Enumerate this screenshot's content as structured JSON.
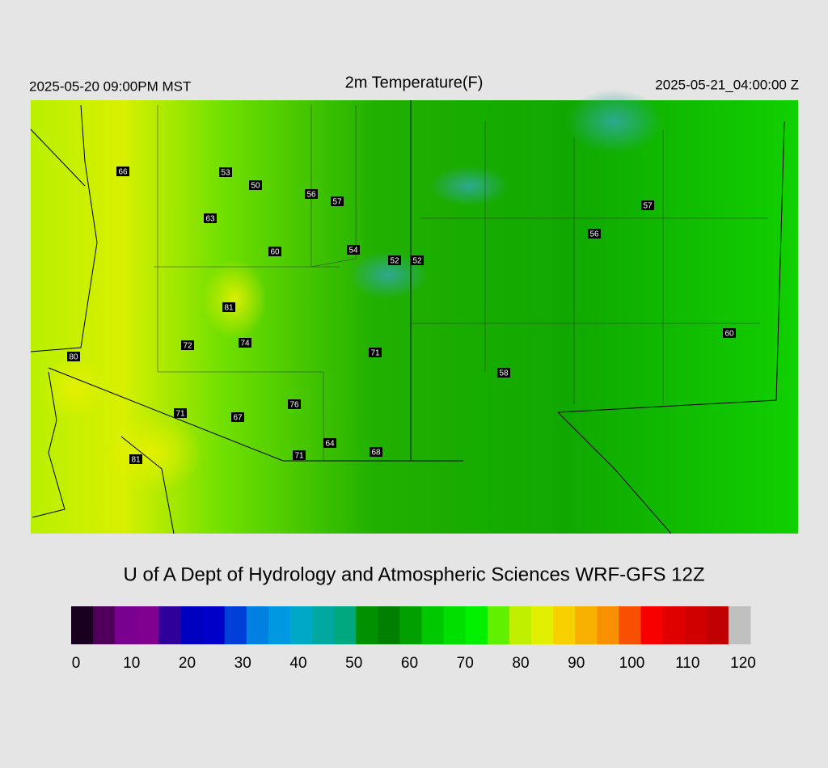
{
  "header": {
    "left": "2025-05-20 09:00PM MST",
    "title": "2m Temperature(F)",
    "right": "2025-05-21_04:00:00 Z"
  },
  "stations": [
    "66",
    "53",
    "50",
    "56",
    "57",
    "63",
    "60",
    "54",
    "52",
    "52",
    "57",
    "56",
    "81",
    "72",
    "74",
    "71",
    "60",
    "58",
    "80",
    "71",
    "67",
    "76",
    "64",
    "68",
    "71",
    "81"
  ],
  "footer": "U of A Dept of Hydrology and Atmospheric Sciences WRF-GFS 12Z",
  "colorbar": {
    "lim": [
      0,
      120
    ],
    "ticks": [
      0,
      10,
      20,
      30,
      40,
      50,
      60,
      70,
      80,
      90,
      100,
      110,
      120
    ],
    "colors": [
      "#1a0020",
      "#50005a",
      "#7a0090",
      "#800090",
      "#30009a",
      "#0000c0",
      "#0000c8",
      "#0040d8",
      "#0080e0",
      "#0098e0",
      "#00a8c8",
      "#00a8a0",
      "#00a880",
      "#009000",
      "#008000",
      "#00a000",
      "#00c800",
      "#00e000",
      "#00f000",
      "#60f000",
      "#c0f000",
      "#e0f000",
      "#f8d000",
      "#f8b000",
      "#f89000",
      "#f85000",
      "#f80000",
      "#e00000",
      "#d00000",
      "#c00000",
      "#c0c0c0"
    ]
  }
}
